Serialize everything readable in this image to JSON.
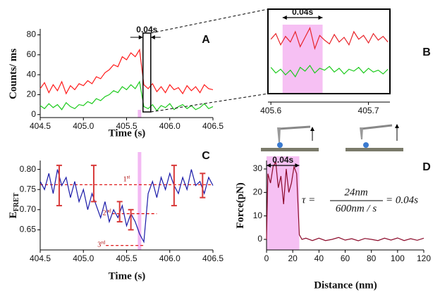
{
  "chart_data": [
    {
      "type": "line",
      "panel_label": "A",
      "xlabel": "Time (s)",
      "ylabel": "Counts/ ms",
      "annotation": "0.04s",
      "x": [
        404.5,
        404.55,
        404.6,
        404.65,
        404.7,
        404.75,
        404.8,
        404.85,
        404.9,
        404.95,
        405.0,
        405.05,
        405.1,
        405.15,
        405.2,
        405.25,
        405.3,
        405.35,
        405.4,
        405.45,
        405.5,
        405.55,
        405.6,
        405.65,
        405.7,
        405.75,
        405.8,
        405.85,
        405.9,
        405.95,
        406.0,
        406.05,
        406.1,
        406.15,
        406.2,
        406.25,
        406.3,
        406.35,
        406.4,
        406.45,
        406.5
      ],
      "series": [
        {
          "color": "#ff1a1a",
          "values": [
            26,
            32,
            22,
            30,
            24,
            33,
            21,
            29,
            25,
            31,
            29,
            34,
            31,
            38,
            36,
            42,
            45,
            50,
            48,
            58,
            55,
            62,
            58,
            65,
            30,
            26,
            31,
            23,
            28,
            22,
            30,
            25,
            27,
            21,
            29,
            24,
            28,
            22,
            30,
            26,
            25
          ]
        },
        {
          "color": "#1ecb1e",
          "values": [
            9,
            6,
            11,
            7,
            10,
            5,
            12,
            8,
            6,
            10,
            9,
            13,
            11,
            16,
            14,
            18,
            20,
            24,
            22,
            28,
            25,
            30,
            26,
            33,
            8,
            6,
            10,
            4,
            9,
            7,
            11,
            5,
            8,
            10,
            6,
            9,
            5,
            7,
            11,
            6,
            8
          ]
        }
      ],
      "xlim": [
        404.5,
        406.5
      ],
      "ylim": [
        -3,
        86
      ],
      "xticks": [
        404.5,
        {
          "value": 405,
          "label": "405.0"
        },
        405.5,
        {
          "value": 406,
          "label": "406.0"
        },
        406.5
      ],
      "yticks": [
        0,
        20,
        40,
        60,
        80
      ],
      "grid": false,
      "zoom_box": [
        405.69,
        405.78
      ],
      "highlight_x": 405.65
    },
    {
      "type": "line",
      "panel_label": "B",
      "annotation": "0.04s",
      "x": [
        405.6,
        405.605,
        405.61,
        405.615,
        405.62,
        405.625,
        405.63,
        405.635,
        405.64,
        405.645,
        405.65,
        405.655,
        405.66,
        405.665,
        405.67,
        405.675,
        405.68,
        405.685,
        405.69,
        405.695,
        405.7,
        405.705,
        405.71,
        405.715,
        405.72
      ],
      "series": [
        {
          "color": "#e8242a",
          "values": [
            58,
            64,
            52,
            61,
            55,
            66,
            50,
            60,
            70,
            48,
            62,
            57,
            53,
            63,
            55,
            60,
            52,
            66,
            58,
            62,
            54,
            64,
            57,
            61,
            55
          ]
        },
        {
          "color": "#1ecb1e",
          "values": [
            28,
            22,
            26,
            20,
            25,
            18,
            28,
            24,
            30,
            22,
            27,
            25,
            29,
            23,
            27,
            21,
            26,
            24,
            28,
            22,
            27,
            23,
            25,
            21,
            26
          ]
        }
      ],
      "xlim": [
        405.597,
        405.722
      ],
      "ylim": [
        0,
        90
      ],
      "xticks": [
        405.6,
        405.7
      ],
      "grid": false,
      "highlight": [
        405.612,
        405.653
      ]
    },
    {
      "type": "line",
      "panel_label": "C",
      "xlabel": "Time (s)",
      "ylabel": "E",
      "ylabel_sub": "FRET",
      "x": [
        404.5,
        404.55,
        404.6,
        404.65,
        404.7,
        404.75,
        404.8,
        404.85,
        404.9,
        404.95,
        405.0,
        405.05,
        405.1,
        405.15,
        405.2,
        405.25,
        405.3,
        405.35,
        405.4,
        405.45,
        405.5,
        405.55,
        405.6,
        405.65,
        405.7,
        405.75,
        405.8,
        405.85,
        405.9,
        405.95,
        406.0,
        406.05,
        406.1,
        406.15,
        406.2,
        406.25,
        406.3,
        406.35,
        406.4,
        406.45,
        406.5
      ],
      "series": [
        {
          "color": "#1a1aa8",
          "values": [
            0.77,
            0.75,
            0.79,
            0.74,
            0.8,
            0.76,
            0.78,
            0.73,
            0.77,
            0.72,
            0.75,
            0.7,
            0.74,
            0.71,
            0.68,
            0.72,
            0.67,
            0.7,
            0.68,
            0.71,
            0.66,
            0.69,
            0.67,
            0.64,
            0.62,
            0.74,
            0.77,
            0.73,
            0.78,
            0.75,
            0.79,
            0.76,
            0.74,
            0.78,
            0.75,
            0.8,
            0.76,
            0.77,
            0.74,
            0.78,
            0.76
          ]
        }
      ],
      "errorbars": {
        "color": "#d83a3a",
        "x": [
          404.72,
          405.12,
          405.42,
          405.55,
          406.05,
          406.38
        ],
        "values": [
          0.76,
          0.765,
          0.695,
          0.675,
          0.76,
          0.76
        ],
        "errors": [
          0.05,
          0.045,
          0.025,
          0.025,
          0.05,
          0.03
        ]
      },
      "levels": [
        {
          "value": 0.762,
          "label": "1",
          "sup": "st",
          "x": [
            404.5,
            406.5
          ]
        },
        {
          "value": 0.69,
          "label": "2",
          "sup": "nd",
          "x": [
            405.33,
            405.85
          ]
        },
        {
          "value": 0.611,
          "label": "3",
          "sup": "rd",
          "x": [
            405.26,
            405.71
          ]
        }
      ],
      "xlim": [
        404.5,
        406.5
      ],
      "ylim": [
        0.6,
        0.822
      ],
      "xticks": [
        404.5,
        {
          "value": 405,
          "label": "405.0"
        },
        405.5,
        {
          "value": 406,
          "label": "406.0"
        },
        406.5
      ],
      "yticks": [
        0.65,
        {
          "value": 0.7,
          "label": "0.70"
        },
        0.75,
        {
          "value": 0.8,
          "label": "0.80"
        }
      ],
      "grid": false,
      "highlight_x": 405.65
    },
    {
      "type": "line",
      "panel_label": "D",
      "xlabel": "Distance (nm)",
      "ylabel": "Force(pN)",
      "annotation": "0.04s",
      "x": [
        0,
        1,
        3,
        5,
        7,
        9,
        11,
        13,
        15,
        17,
        19,
        21,
        23,
        25,
        27,
        30,
        35,
        40,
        45,
        50,
        55,
        60,
        65,
        70,
        75,
        80,
        85,
        90,
        95,
        100,
        105,
        110,
        115,
        120
      ],
      "series": [
        {
          "color": "#8b0a2a",
          "values": [
            0,
            28,
            24,
            31,
            33,
            22,
            27,
            15,
            30,
            20,
            24,
            31,
            28,
            2,
            0,
            0.5,
            -0.5,
            0.5,
            -0.5,
            0,
            0.8,
            -0.3,
            0.3,
            -0.6,
            0.4,
            0,
            -0.5,
            0.5,
            -0.3,
            0.6,
            -0.5,
            0.3,
            -0.4,
            0.5
          ]
        }
      ],
      "xlim": [
        0,
        120
      ],
      "ylim": [
        -4.5,
        33.6
      ],
      "xticks": [
        0,
        20,
        40,
        60,
        80,
        100,
        120
      ],
      "yticks": [
        0,
        10,
        20,
        30
      ],
      "grid": false,
      "highlight": [
        0,
        25
      ],
      "formula": {
        "lhs": "τ =",
        "numerator": "24nm",
        "denominator": "600nm / s",
        "rhs": "= 0.04s"
      }
    }
  ]
}
